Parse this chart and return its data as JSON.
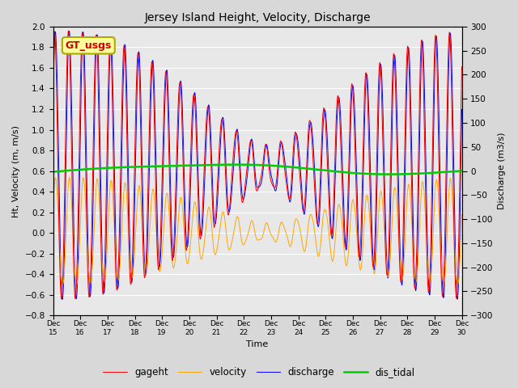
{
  "title": "Jersey Island Height, Velocity, Discharge",
  "xlabel": "Time",
  "ylabel_left": "Ht, Velocity (m, m/s)",
  "ylabel_right": "Discharge (m3/s)",
  "ylim_left": [
    -0.8,
    2.0
  ],
  "ylim_right": [
    -300,
    300
  ],
  "xlim": [
    15,
    30
  ],
  "xtick_labels": [
    "Dec 15",
    "Dec 16",
    "Dec 17",
    "Dec 18",
    "Dec 19",
    "Dec 20",
    "Dec 21",
    "Dec 22",
    "Dec 23",
    "Dec 24",
    "Dec 25",
    "Dec 26",
    "Dec 27",
    "Dec 28",
    "Dec 29",
    "Dec 30"
  ],
  "xtick_positions": [
    15,
    16,
    17,
    18,
    19,
    20,
    21,
    22,
    23,
    24,
    25,
    26,
    27,
    28,
    29,
    30
  ],
  "legend_labels": [
    "gageht",
    "velocity",
    "discharge",
    "dis_tidal"
  ],
  "line_colors": {
    "gageht": "#ff0000",
    "velocity": "#ffa500",
    "discharge": "#0000ff",
    "dis_tidal": "#00cc00"
  },
  "annotation_text": "GT_usgs",
  "annotation_color": "#cc0000",
  "annotation_bbox_facecolor": "#ffff99",
  "annotation_bbox_edgecolor": "#aaaa00",
  "background_color": "#d8d8d8",
  "plot_bg_color": "#e8e8e8",
  "yticks_left": [
    -0.8,
    -0.6,
    -0.4,
    -0.2,
    0.0,
    0.2,
    0.4,
    0.6,
    0.8,
    1.0,
    1.2,
    1.4,
    1.6,
    1.8,
    2.0
  ],
  "yticks_right": [
    -300,
    -250,
    -200,
    -150,
    -100,
    -50,
    0,
    50,
    100,
    150,
    200,
    250,
    300
  ],
  "tidal_period_hours": 12.42,
  "start_day": 15,
  "end_day": 30,
  "samples_per_day": 192
}
